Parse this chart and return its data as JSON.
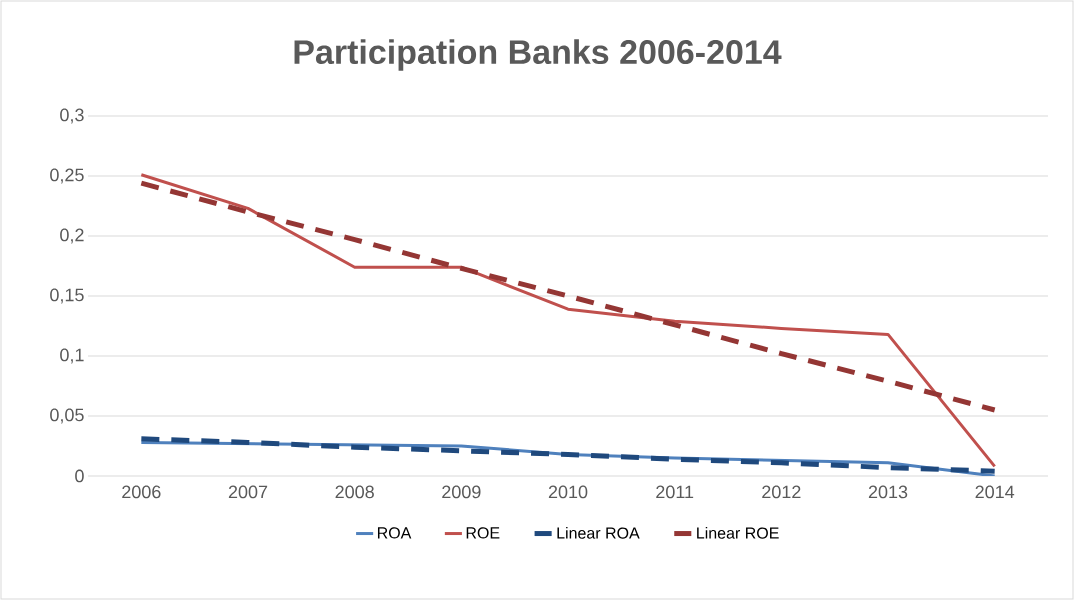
{
  "chart_data": {
    "type": "line",
    "title": "Participation Banks 2006-2014",
    "x": [
      2006,
      2007,
      2008,
      2009,
      2010,
      2011,
      2012,
      2013,
      2014
    ],
    "xlim": [
      2005.5,
      2014.5
    ],
    "xticks": [
      2006,
      2007,
      2008,
      2009,
      2010,
      2011,
      2012,
      2013,
      2014
    ],
    "ylim": [
      0,
      0.3
    ],
    "yticks": [
      0,
      {
        "value": 0.05,
        "label": "0,05"
      },
      {
        "value": 0.1,
        "label": "0,1"
      },
      {
        "value": 0.15,
        "label": "0,15"
      },
      {
        "value": 0.2,
        "label": "0,2"
      },
      {
        "value": 0.25,
        "label": "0,25"
      },
      {
        "value": 0.3,
        "label": "0,3"
      }
    ],
    "grid": "y",
    "legend": "bottom",
    "marker": "none",
    "series": [
      {
        "name": "ROA",
        "color": "#4f81bd",
        "line_style": "solid",
        "values": [
          0.028,
          0.027,
          0.026,
          0.025,
          0.018,
          0.015,
          0.013,
          0.011,
          0.0
        ]
      },
      {
        "name": "ROE",
        "color": "#c0504d",
        "line_style": "solid",
        "values": [
          0.251,
          0.223,
          0.174,
          0.174,
          0.139,
          0.129,
          0.123,
          0.118,
          0.008
        ]
      },
      {
        "name": "Linear ROA",
        "color": "#1f497d",
        "line_style": "dashed",
        "values": [
          0.031,
          0.028,
          0.024,
          0.021,
          0.018,
          0.014,
          0.011,
          0.007,
          0.004
        ]
      },
      {
        "name": "Linear ROE",
        "color": "#943634",
        "line_style": "dashed",
        "values": [
          0.244,
          0.22,
          0.197,
          0.173,
          0.15,
          0.126,
          0.102,
          0.079,
          0.055
        ]
      }
    ]
  }
}
